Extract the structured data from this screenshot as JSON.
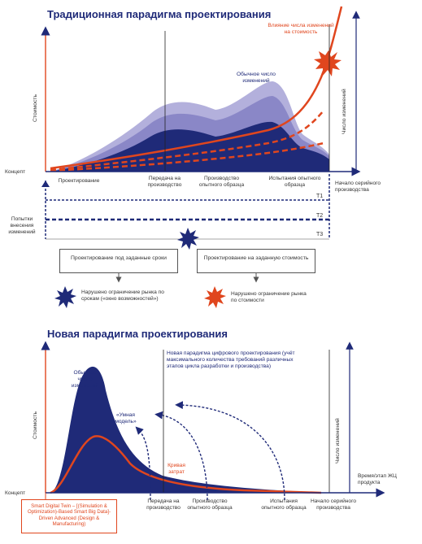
{
  "top": {
    "title": "Традиционная парадигма проектирования",
    "y_axis": "Стоимость",
    "y_axis_right": "Число изменений",
    "origin": "Концепт",
    "label_influence": "Влияние числа изменений на стоимость",
    "label_changes": "Обычное число изменений",
    "stages": [
      "Проектирование",
      "Передача на производство",
      "Производство опытного образца",
      "Испытания опытного образца",
      "Начало серийного производства"
    ],
    "attempts_label": "Попытки внесения изменений",
    "t_labels": [
      "T1",
      "T2",
      "T3"
    ],
    "box_left": "Проектирование под заданные сроки",
    "box_right": "Проектирование на заданную стоимость",
    "note_left": "Нарушено ограничение рынка по срокам («окно возможностей»)",
    "note_right": "Нарушено ограничение рынка по стоимости"
  },
  "bottom": {
    "title": "Новая парадигма проектирования",
    "y_axis": "Стоимость",
    "y_axis_right": "Число изменений",
    "origin": "Концепт",
    "label_changes": "Обычное число изменений",
    "label_smart": "«Умная модель»",
    "label_cost": "Кривая затрат",
    "label_paradigm": "Новая парадигма цифрового проектирования (учёт максимального количества требований различных этапов цикла разработки и производства)",
    "x_axis": "Время/этап ЖЦ продукта",
    "stages": [
      "Передача на производство",
      "Производство опытного образца",
      "Испытания опытного образца",
      "Начало серийного производства"
    ],
    "smart_box": "Smart Digital Twin – [(Simulation & Optimization)-Based Smart Big Data]-Driven Advanced (Design & Manufacturing)"
  },
  "colors": {
    "navy": "#1f2a78",
    "red": "#e0461e",
    "light": "#8a87c7",
    "pale": "#b3b0dc"
  }
}
